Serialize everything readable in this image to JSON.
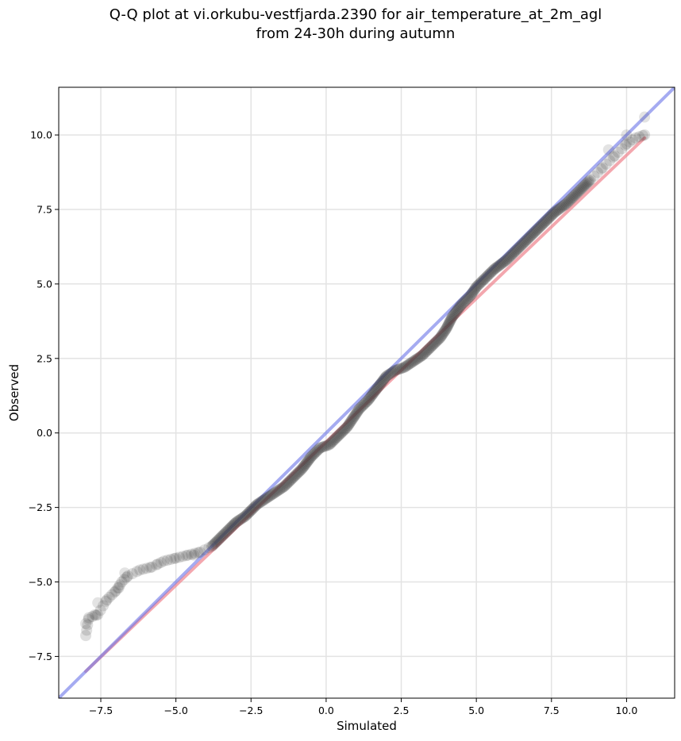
{
  "chart_data": {
    "type": "scatter",
    "title": [
      "Q-Q plot at vi.orkubu-vestfjarda.2390 for air_temperature_at_2m_agl",
      "from 24-30h during autumn"
    ],
    "xlabel": "Simulated",
    "ylabel": "Observed",
    "xlim": [
      -8.9,
      11.6
    ],
    "ylim": [
      -8.9,
      11.6
    ],
    "grid": true,
    "x_ticks": [
      -7.5,
      -5.0,
      -2.5,
      0.0,
      2.5,
      5.0,
      7.5,
      10.0
    ],
    "y_ticks": [
      -7.5,
      -5.0,
      -2.5,
      0.0,
      2.5,
      5.0,
      7.5,
      10.0
    ],
    "x_tick_labels": [
      "−7.5",
      "−5.0",
      "−2.5",
      "0.0",
      "2.5",
      "5.0",
      "7.5",
      "10.0"
    ],
    "y_tick_labels": [
      "−7.5",
      "−5.0",
      "−2.5",
      "0.0",
      "2.5",
      "5.0",
      "7.5",
      "10.0"
    ],
    "reference_line": {
      "x": [
        -8.9,
        11.6
      ],
      "y": [
        -8.9,
        11.6
      ],
      "color": "#6b74e8"
    },
    "fit_line": {
      "x": [
        -8.0,
        10.6
      ],
      "y": [
        -8.0,
        9.9
      ],
      "color": "#f08a94"
    },
    "point_color": "#3a3a3a",
    "quantile_curve": {
      "x": [
        -8.0,
        -7.9,
        -7.6,
        -7.3,
        -7.0,
        -6.8,
        -6.6,
        -6.2,
        -5.8,
        -5.4,
        -5.0,
        -4.6,
        -4.2,
        -3.8,
        -3.5,
        -3.2,
        -3.0,
        -2.7,
        -2.5,
        -2.3,
        -2.0,
        -1.7,
        -1.4,
        -1.1,
        -0.8,
        -0.5,
        -0.2,
        0.1,
        0.4,
        0.7,
        0.9,
        1.1,
        1.4,
        1.7,
        2.0,
        2.3,
        2.6,
        2.9,
        3.2,
        3.5,
        3.8,
        4.0,
        4.2,
        4.5,
        4.8,
        5.0,
        5.3,
        5.6,
        6.0,
        6.4,
        6.8,
        7.2,
        7.6,
        8.0,
        8.4,
        8.8,
        9.2,
        9.6,
        10.0,
        10.3,
        10.6
      ],
      "y": [
        -6.8,
        -6.2,
        -6.1,
        -5.6,
        -5.3,
        -5.0,
        -4.8,
        -4.6,
        -4.5,
        -4.3,
        -4.2,
        -4.1,
        -4.0,
        -3.8,
        -3.5,
        -3.2,
        -3.0,
        -2.8,
        -2.6,
        -2.4,
        -2.2,
        -2.0,
        -1.8,
        -1.5,
        -1.2,
        -0.8,
        -0.5,
        -0.4,
        -0.1,
        0.2,
        0.5,
        0.8,
        1.1,
        1.5,
        1.9,
        2.1,
        2.2,
        2.4,
        2.6,
        2.9,
        3.2,
        3.5,
        3.9,
        4.3,
        4.6,
        4.9,
        5.2,
        5.5,
        5.8,
        6.2,
        6.6,
        7.0,
        7.4,
        7.7,
        8.1,
        8.5,
        8.9,
        9.3,
        9.7,
        9.9,
        10.0
      ]
    },
    "outliers": [
      {
        "x": -8.0,
        "y": -6.4
      },
      {
        "x": -7.7,
        "y": -6.1
      },
      {
        "x": -7.6,
        "y": -5.7
      },
      {
        "x": -6.9,
        "y": -5.2
      },
      {
        "x": -6.7,
        "y": -4.7
      },
      {
        "x": -5.6,
        "y": -4.4
      },
      {
        "x": -4.4,
        "y": -4.1
      },
      {
        "x": 9.4,
        "y": 9.5
      },
      {
        "x": 10.0,
        "y": 10.0
      },
      {
        "x": 10.6,
        "y": 10.6
      }
    ]
  }
}
